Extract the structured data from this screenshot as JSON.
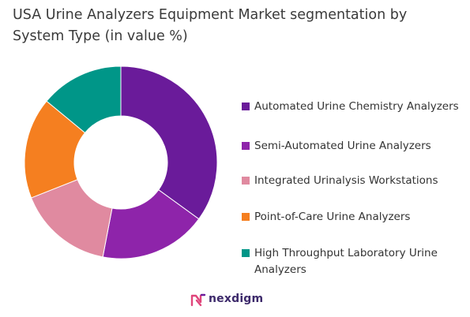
{
  "title": "USA Urine Analyzers Equipment Market segmentation by System Type (in value %)",
  "chart_data": {
    "type": "pie",
    "donut": true,
    "title": "USA Urine Analyzers Equipment Market segmentation by System Type (in value %)",
    "categories": [
      "Automated Urine Chemistry Analyzers",
      "Semi-Automated Urine Analyzers",
      "Integrated Urinalysis Workstations",
      "Point-of-Care Urine Analyzers",
      "High Throughput Laboratory Urine Analyzers"
    ],
    "values": [
      35,
      18,
      16,
      17,
      14
    ],
    "colors": [
      "#6a1b9a",
      "#8e24aa",
      "#e08aa0",
      "#f57f20",
      "#009688"
    ],
    "legend_placement": "right"
  },
  "brand": {
    "name": "nexdigm"
  }
}
